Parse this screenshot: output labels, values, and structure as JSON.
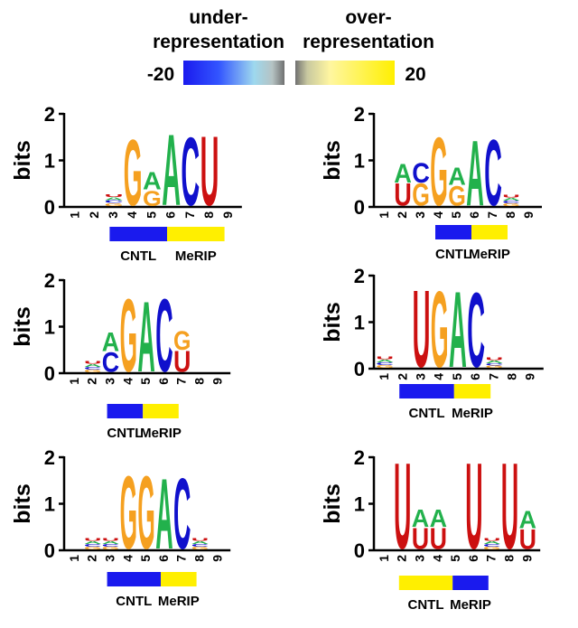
{
  "legend": {
    "under_line1": "under-",
    "under_line2": "representation",
    "over_line1": "over-",
    "over_line2": "representation",
    "min_label": "-20",
    "max_label": "20",
    "range": [
      -20,
      20
    ]
  },
  "colors": {
    "A": "#22b14c",
    "C": "#1010cc",
    "G": "#f5a020",
    "U": "#cc1010",
    "under": "#1a1aee",
    "over": "#ffef00",
    "axis": "#000000"
  },
  "chart_data": [
    {
      "type": "sequence-logo",
      "ylabel": "bits",
      "ylim": [
        0,
        2
      ],
      "yticks": [
        0,
        1,
        2
      ],
      "positions": [
        "1",
        "2",
        "3",
        "4",
        "5",
        "6",
        "7",
        "8",
        "9"
      ],
      "columns": [
        [],
        [],
        [
          [
            "G",
            0.07
          ],
          [
            "C",
            0.06
          ],
          [
            "A",
            0.06
          ],
          [
            "U",
            0.07
          ]
        ],
        [
          [
            "G",
            1.5
          ]
        ],
        [
          [
            "G",
            0.35
          ],
          [
            "A",
            0.4
          ]
        ],
        [
          [
            "A",
            1.62
          ]
        ],
        [
          [
            "C",
            1.55
          ]
        ],
        [
          [
            "U",
            1.58
          ]
        ],
        []
      ],
      "bar": [
        {
          "label": "CNTL",
          "color": "under",
          "from": 3,
          "to": 5
        },
        {
          "label": "MeRIP",
          "color": "over",
          "from": 6,
          "to": 8
        }
      ]
    },
    {
      "type": "sequence-logo",
      "ylabel": "bits",
      "ylim": [
        0,
        2
      ],
      "yticks": [
        0,
        1,
        2
      ],
      "positions": [
        "1",
        "2",
        "3",
        "4",
        "5",
        "6",
        "7",
        "8",
        "9"
      ],
      "columns": [
        [],
        [
          [
            "U",
            0.5
          ],
          [
            "A",
            0.42
          ]
        ],
        [
          [
            "G",
            0.5
          ],
          [
            "C",
            0.45
          ]
        ],
        [
          [
            "G",
            1.55
          ]
        ],
        [
          [
            "G",
            0.45
          ],
          [
            "A",
            0.4
          ]
        ],
        [
          [
            "A",
            1.48
          ]
        ],
        [
          [
            "C",
            1.5
          ]
        ],
        [
          [
            "G",
            0.06
          ],
          [
            "C",
            0.06
          ],
          [
            "A",
            0.06
          ],
          [
            "U",
            0.06
          ]
        ],
        []
      ],
      "bar": [
        {
          "label": "CNTL",
          "color": "under",
          "from": 4,
          "to": 5
        },
        {
          "label": "MeRIP",
          "color": "over",
          "from": 6,
          "to": 7
        }
      ]
    },
    {
      "type": "sequence-logo",
      "ylabel": "bits",
      "ylim": [
        0,
        2
      ],
      "yticks": [
        0,
        1,
        2
      ],
      "positions": [
        "1",
        "2",
        "3",
        "4",
        "5",
        "6",
        "7",
        "8",
        "9"
      ],
      "columns": [
        [],
        [
          [
            "G",
            0.06
          ],
          [
            "C",
            0.06
          ],
          [
            "A",
            0.06
          ],
          [
            "U",
            0.06
          ]
        ],
        [
          [
            "C",
            0.45
          ],
          [
            "A",
            0.42
          ]
        ],
        [
          [
            "G",
            1.65
          ]
        ],
        [
          [
            "A",
            1.6
          ]
        ],
        [
          [
            "C",
            1.65
          ]
        ],
        [
          [
            "U",
            0.48
          ],
          [
            "G",
            0.42
          ]
        ],
        [],
        []
      ],
      "bar": [
        {
          "label": "CNTL",
          "color": "under",
          "from": 3,
          "to": 4
        },
        {
          "label": "MeRIP",
          "color": "over",
          "from": 5,
          "to": 6
        }
      ]
    },
    {
      "type": "sequence-logo",
      "ylabel": "bits",
      "ylim": [
        0,
        2
      ],
      "yticks": [
        0,
        1,
        2
      ],
      "positions": [
        "1",
        "2",
        "3",
        "4",
        "5",
        "6",
        "7",
        "8",
        "9"
      ],
      "columns": [
        [
          [
            "G",
            0.06
          ],
          [
            "C",
            0.06
          ],
          [
            "A",
            0.06
          ],
          [
            "U",
            0.06
          ]
        ],
        [],
        [
          [
            "U",
            1.75
          ]
        ],
        [
          [
            "G",
            1.72
          ]
        ],
        [
          [
            "A",
            1.72
          ]
        ],
        [
          [
            "C",
            1.7
          ]
        ],
        [
          [
            "G",
            0.05
          ],
          [
            "C",
            0.05
          ],
          [
            "A",
            0.06
          ],
          [
            "U",
            0.06
          ]
        ],
        [],
        []
      ],
      "bar": [
        {
          "label": "CNTL",
          "color": "under",
          "from": 2,
          "to": 4
        },
        {
          "label": "MeRIP",
          "color": "over",
          "from": 5,
          "to": 6
        }
      ]
    },
    {
      "type": "sequence-logo",
      "ylabel": "bits",
      "ylim": [
        0,
        2
      ],
      "yticks": [
        0,
        1,
        2
      ],
      "positions": [
        "1",
        "2",
        "3",
        "4",
        "5",
        "6",
        "7",
        "8",
        "9"
      ],
      "columns": [
        [],
        [
          [
            "G",
            0.06
          ],
          [
            "C",
            0.06
          ],
          [
            "A",
            0.06
          ],
          [
            "U",
            0.06
          ]
        ],
        [
          [
            "G",
            0.06
          ],
          [
            "C",
            0.06
          ],
          [
            "A",
            0.06
          ],
          [
            "U",
            0.06
          ]
        ],
        [
          [
            "G",
            1.65
          ]
        ],
        [
          [
            "G",
            1.65
          ]
        ],
        [
          [
            "A",
            1.6
          ]
        ],
        [
          [
            "C",
            1.6
          ]
        ],
        [
          [
            "G",
            0.06
          ],
          [
            "C",
            0.06
          ],
          [
            "A",
            0.06
          ],
          [
            "U",
            0.06
          ]
        ],
        []
      ],
      "bar": [
        {
          "label": "CNTL",
          "color": "under",
          "from": 3,
          "to": 5
        },
        {
          "label": "MeRIP",
          "color": "over",
          "from": 6,
          "to": 7
        }
      ]
    },
    {
      "type": "sequence-logo",
      "ylabel": "bits",
      "ylim": [
        0,
        2
      ],
      "yticks": [
        0,
        1,
        2
      ],
      "positions": [
        "1",
        "2",
        "3",
        "4",
        "5",
        "6",
        "7",
        "8",
        "9"
      ],
      "columns": [
        [],
        [
          [
            "U",
            1.95
          ]
        ],
        [
          [
            "U",
            0.48
          ],
          [
            "A",
            0.4
          ]
        ],
        [
          [
            "U",
            0.48
          ],
          [
            "A",
            0.4
          ]
        ],
        [],
        [
          [
            "U",
            1.95
          ]
        ],
        [
          [
            "G",
            0.06
          ],
          [
            "C",
            0.06
          ],
          [
            "A",
            0.06
          ],
          [
            "U",
            0.06
          ]
        ],
        [
          [
            "U",
            1.95
          ]
        ],
        [
          [
            "U",
            0.45
          ],
          [
            "A",
            0.4
          ]
        ]
      ],
      "bar": [
        {
          "label": "CNTL",
          "color": "over",
          "from": 2,
          "to": 4
        },
        {
          "label": "MeRIP",
          "color": "under",
          "from": 5,
          "to": 6
        }
      ]
    }
  ]
}
